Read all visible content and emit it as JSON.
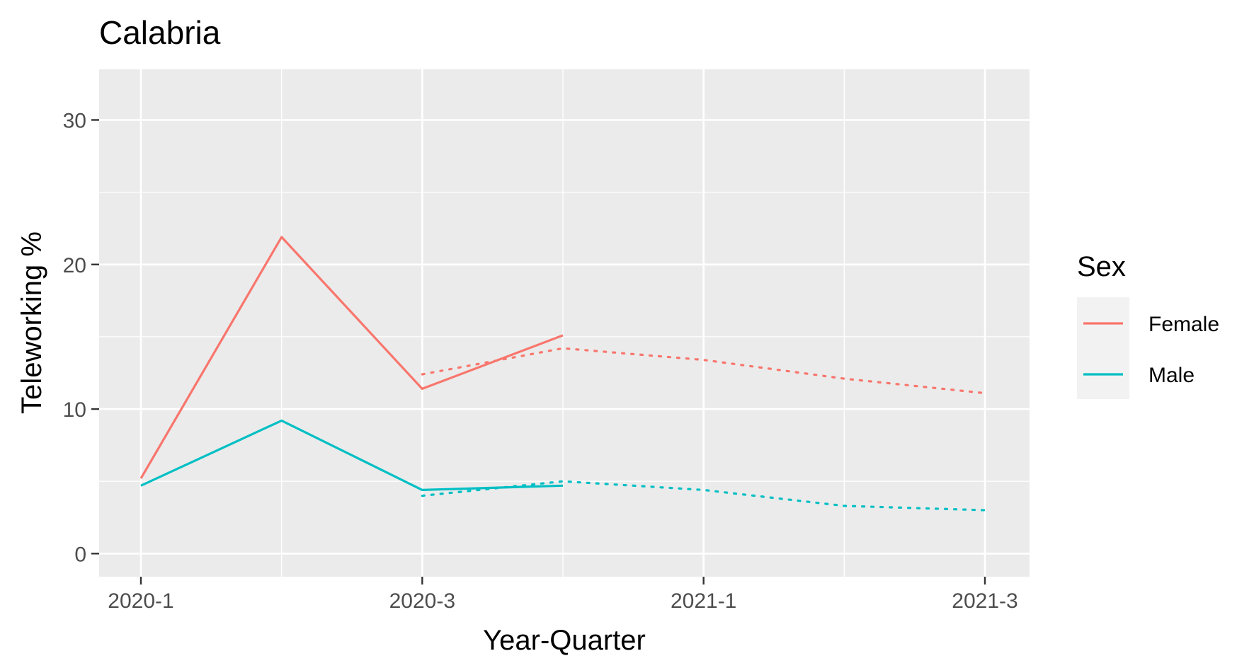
{
  "chart_data": {
    "type": "line",
    "title": "Calabria",
    "xlabel": "Year-Quarter",
    "ylabel": "Teleworking %",
    "x_ticks": [
      "2020-1",
      "2020-3",
      "2021-1",
      "2021-3"
    ],
    "x_periods": [
      "2020-1",
      "2020-2",
      "2020-3",
      "2020-4",
      "2021-1",
      "2021-2",
      "2021-3"
    ],
    "y_ticks": [
      0,
      10,
      20,
      30
    ],
    "ylim": [
      -1.6,
      33.5
    ],
    "grid": true,
    "legend": {
      "title": "Sex",
      "placement": "right",
      "entries": [
        {
          "label": "Female",
          "color": "#F8766D"
        },
        {
          "label": "Male",
          "color": "#00BFC4"
        }
      ]
    },
    "series": [
      {
        "name": "Female",
        "style": "solid",
        "color": "#F8766D",
        "x": [
          "2020-1",
          "2020-2",
          "2020-3",
          "2020-4"
        ],
        "values": [
          5.2,
          21.9,
          11.4,
          15.1
        ]
      },
      {
        "name": "Male",
        "style": "solid",
        "color": "#00BFC4",
        "x": [
          "2020-1",
          "2020-2",
          "2020-3",
          "2020-4"
        ],
        "values": [
          4.7,
          9.2,
          4.4,
          4.7
        ]
      },
      {
        "name": "Female",
        "style": "dotted",
        "color": "#F8766D",
        "x": [
          "2020-3",
          "2020-4",
          "2021-1",
          "2021-2",
          "2021-3"
        ],
        "values": [
          12.4,
          14.2,
          13.4,
          12.1,
          11.1
        ]
      },
      {
        "name": "Male",
        "style": "dotted",
        "color": "#00BFC4",
        "x": [
          "2020-3",
          "2020-4",
          "2021-1",
          "2021-2",
          "2021-3"
        ],
        "values": [
          4.0,
          5.0,
          4.4,
          3.3,
          3.0
        ]
      }
    ]
  }
}
